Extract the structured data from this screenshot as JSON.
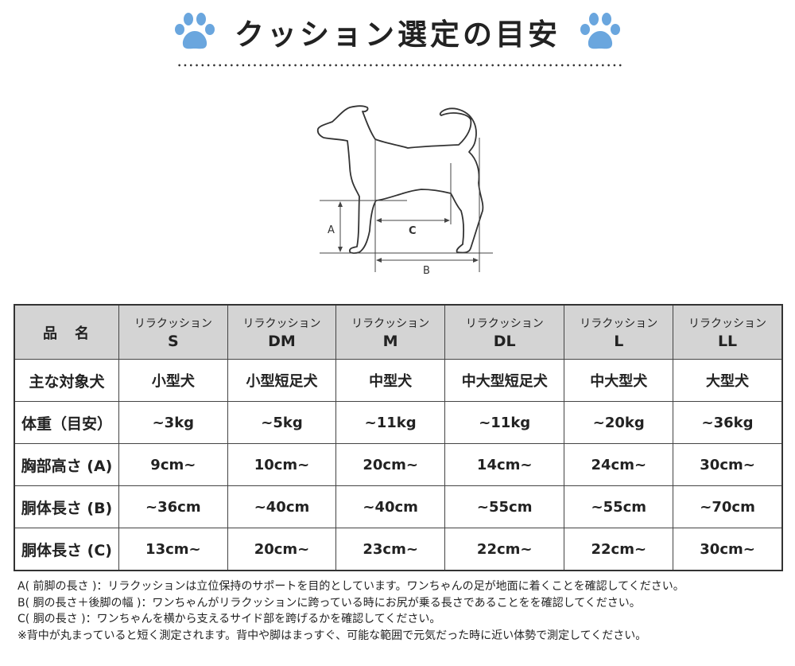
{
  "header": {
    "title": "クッション選定の目安",
    "paw_color": "#6aa6de"
  },
  "diagram": {
    "label_a": "A",
    "label_b": "B",
    "label_c": "C"
  },
  "table": {
    "corner": "品　名",
    "products": [
      {
        "prefix": "リラクッション",
        "size": "S"
      },
      {
        "prefix": "リラクッション",
        "size": "DM"
      },
      {
        "prefix": "リラクッション",
        "size": "M"
      },
      {
        "prefix": "リラクッション",
        "size": "DL"
      },
      {
        "prefix": "リラクッション",
        "size": "L"
      },
      {
        "prefix": "リラクッション",
        "size": "LL"
      }
    ],
    "rows": [
      {
        "label": "主な対象犬",
        "values": [
          "小型犬",
          "小型短足犬",
          "中型犬",
          "中大型短足犬",
          "中大型犬",
          "大型犬"
        ]
      },
      {
        "label": "体重（目安）",
        "values": [
          "~3kg",
          "~5kg",
          "~11kg",
          "~11kg",
          "~20kg",
          "~36kg"
        ]
      },
      {
        "label": "胸部高さ (A)",
        "values": [
          "9cm~",
          "10cm~",
          "20cm~",
          "14cm~",
          "24cm~",
          "30cm~"
        ]
      },
      {
        "label": "胴体長さ (B)",
        "values": [
          "~36cm",
          "~40cm",
          "~40cm",
          "~55cm",
          "~55cm",
          "~70cm"
        ]
      },
      {
        "label": "胴体長さ (C)",
        "values": [
          "13cm~",
          "20cm~",
          "23cm~",
          "22cm~",
          "22cm~",
          "30cm~"
        ]
      }
    ]
  },
  "notes": [
    "A( 前脚の長さ )：リラクッションは立位保持のサポートを目的としています。ワンちゃんの足が地面に着くことを確認してください。",
    "B( 胴の長さ＋後脚の幅 )：ワンちゃんがリラクッションに跨っている時にお尻が乗る長さであることをを確認してください。",
    "C( 胴の長さ )：ワンちゃんを横から支えるサイド部を跨げるかを確認してください。",
    "※背中が丸まっていると短く測定されます。背中や脚はまっすぐ、可能な範囲で元気だった時に近い体勢で測定してください。"
  ]
}
